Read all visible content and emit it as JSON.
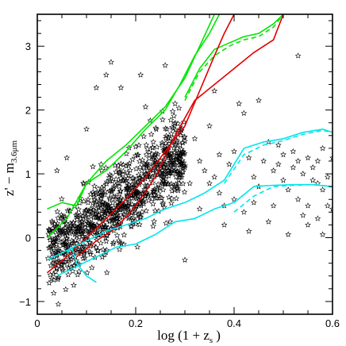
{
  "chart_data": {
    "type": "scatter",
    "title": "",
    "xlabel": {
      "main": "log (1 + z",
      "sub": "s",
      "close": ")"
    },
    "ylabel": {
      "main": "z' − m",
      "sub": "3.6μm"
    },
    "xlim": [
      0,
      0.6
    ],
    "ylim": [
      -1.2,
      3.5
    ],
    "x_ticks": [
      {
        "value": 0,
        "label": "0"
      },
      {
        "value": 0.2,
        "label": "0.2"
      },
      {
        "value": 0.4,
        "label": "0.4"
      },
      {
        "value": 0.6,
        "label": "0.6"
      }
    ],
    "y_ticks": [
      {
        "value": -1,
        "label": "−1"
      },
      {
        "value": 0,
        "label": "0"
      },
      {
        "value": 1,
        "label": "1"
      },
      {
        "value": 2,
        "label": "2"
      },
      {
        "value": 3,
        "label": "3"
      }
    ],
    "grid": false,
    "legend": "none",
    "colors": {
      "stars": "#000000",
      "green": "#00e600",
      "red": "#e00000",
      "cyan": "#00e5ee"
    },
    "scatter_summary": {
      "marker": "star",
      "seed": 7,
      "dense_points": 900,
      "dense_x_range": [
        0.02,
        0.3
      ],
      "dense_relation": {
        "intercept": -0.45,
        "slope": 6.0,
        "scatter": 0.4
      },
      "sparse_points": [
        [
          0.04,
          1.05
        ],
        [
          0.06,
          1.25
        ],
        [
          0.1,
          1.7
        ],
        [
          0.12,
          2.35
        ],
        [
          0.14,
          2.55
        ],
        [
          0.15,
          2.75
        ],
        [
          0.17,
          2.35
        ],
        [
          0.21,
          2.55
        ],
        [
          0.22,
          2.05
        ],
        [
          0.24,
          1.2
        ],
        [
          0.26,
          1.0
        ],
        [
          0.26,
          2.7
        ],
        [
          0.28,
          2.1
        ],
        [
          0.3,
          -0.35
        ],
        [
          0.32,
          1.55
        ],
        [
          0.33,
          1.2
        ],
        [
          0.34,
          1.05
        ],
        [
          0.35,
          0.85
        ],
        [
          0.36,
          0.95
        ],
        [
          0.37,
          0.7
        ],
        [
          0.37,
          1.3
        ],
        [
          0.38,
          0.2
        ],
        [
          0.38,
          0.5
        ],
        [
          0.39,
          1.15
        ],
        [
          0.4,
          1.35
        ],
        [
          0.41,
          2.1
        ],
        [
          0.42,
          0.4
        ],
        [
          0.42,
          1.95
        ],
        [
          0.43,
          1.25
        ],
        [
          0.44,
          0.95
        ],
        [
          0.45,
          0.8
        ],
        [
          0.46,
          1.2
        ],
        [
          0.47,
          1.5
        ],
        [
          0.47,
          0.25
        ],
        [
          0.48,
          1.05
        ],
        [
          0.49,
          1.15
        ],
        [
          0.5,
          0.9
        ],
        [
          0.5,
          1.3
        ],
        [
          0.51,
          0.05
        ],
        [
          0.52,
          1.1
        ],
        [
          0.52,
          1.35
        ],
        [
          0.53,
          0.6
        ],
        [
          0.53,
          1.2
        ],
        [
          0.54,
          1.0
        ],
        [
          0.54,
          0.35
        ],
        [
          0.55,
          1.25
        ],
        [
          0.55,
          0.5
        ],
        [
          0.56,
          0.9
        ],
        [
          0.56,
          1.1
        ],
        [
          0.57,
          0.3
        ],
        [
          0.57,
          1.2
        ],
        [
          0.58,
          0.75
        ],
        [
          0.58,
          0.05
        ],
        [
          0.59,
          0.5
        ],
        [
          0.59,
          0.95
        ],
        [
          0.6,
          0.45
        ],
        [
          0.6,
          1.25
        ],
        [
          0.53,
          2.85
        ],
        [
          0.55,
          0.2
        ],
        [
          0.44,
          0.55
        ],
        [
          0.31,
          0.85
        ],
        [
          0.27,
          0.25
        ],
        [
          0.29,
          1.45
        ],
        [
          0.33,
          0.45
        ],
        [
          0.36,
          2.3
        ],
        [
          0.45,
          2.15
        ],
        [
          0.49,
          1.45
        ],
        [
          0.51,
          0.75
        ],
        [
          0.57,
          0.85
        ],
        [
          0.58,
          1.4
        ],
        [
          0.4,
          0.6
        ],
        [
          0.43,
          0.1
        ],
        [
          0.35,
          1.75
        ],
        [
          0.3,
          1.1
        ],
        [
          0.48,
          0.5
        ]
      ]
    },
    "series": [
      {
        "color": "green",
        "dash": false,
        "x": [
          0.02,
          0.06,
          0.1,
          0.14,
          0.18,
          0.22,
          0.26,
          0.3,
          0.33,
          0.36
        ],
        "y": [
          0.0,
          0.3,
          0.85,
          1.2,
          1.45,
          1.75,
          2.05,
          2.5,
          3.0,
          3.5
        ]
      },
      {
        "color": "green",
        "dash": false,
        "x": [
          0.02,
          0.05,
          0.08,
          0.1,
          0.14,
          0.18,
          0.22,
          0.26,
          0.29,
          0.32,
          0.35,
          0.37
        ],
        "y": [
          0.45,
          0.55,
          0.5,
          0.85,
          1.05,
          1.35,
          1.7,
          2.0,
          2.4,
          2.85,
          3.2,
          3.5
        ]
      },
      {
        "color": "green",
        "dash": false,
        "x": [
          0.3,
          0.33,
          0.36,
          0.39,
          0.42,
          0.45,
          0.48,
          0.5
        ],
        "y": [
          2.2,
          2.65,
          2.95,
          3.05,
          3.15,
          3.2,
          3.35,
          3.5
        ]
      },
      {
        "color": "green",
        "dash": true,
        "x": [
          0.3,
          0.33,
          0.36,
          0.39,
          0.42,
          0.45,
          0.48,
          0.5
        ],
        "y": [
          2.15,
          2.6,
          2.85,
          3.0,
          3.1,
          3.15,
          3.3,
          3.5
        ]
      },
      {
        "color": "red",
        "dash": false,
        "x": [
          0.02,
          0.06,
          0.1,
          0.14,
          0.18,
          0.22,
          0.26,
          0.3,
          0.33,
          0.36,
          0.38,
          0.4
        ],
        "y": [
          -0.55,
          -0.3,
          0.0,
          0.3,
          0.6,
          0.95,
          1.35,
          1.75,
          2.3,
          2.85,
          3.2,
          3.5
        ]
      },
      {
        "color": "red",
        "dash": false,
        "x": [
          0.08,
          0.12,
          0.16,
          0.2,
          0.24,
          0.28,
          0.32,
          0.36,
          0.4,
          0.44,
          0.48,
          0.5
        ],
        "y": [
          -0.3,
          -0.05,
          0.15,
          0.5,
          0.95,
          1.6,
          2.15,
          2.4,
          2.65,
          2.9,
          3.1,
          3.5
        ]
      },
      {
        "color": "cyan",
        "dash": false,
        "x": [
          0.02,
          0.06,
          0.1,
          0.14,
          0.18,
          0.22,
          0.26,
          0.3,
          0.34,
          0.38,
          0.42,
          0.46,
          0.5,
          0.54,
          0.58,
          0.6
        ],
        "y": [
          -0.35,
          -0.2,
          -0.05,
          0.1,
          0.2,
          0.3,
          0.45,
          0.55,
          0.7,
          0.9,
          1.4,
          1.5,
          1.55,
          1.65,
          1.7,
          1.65
        ]
      },
      {
        "color": "cyan",
        "dash": true,
        "x": [
          0.38,
          0.42,
          0.46,
          0.5,
          0.54,
          0.58,
          0.6
        ],
        "y": [
          0.85,
          1.3,
          1.45,
          1.52,
          1.62,
          1.68,
          1.65
        ]
      },
      {
        "color": "cyan",
        "dash": false,
        "x": [
          0.04,
          0.08,
          0.12,
          0.16,
          0.2,
          0.24,
          0.28,
          0.32,
          0.36,
          0.4,
          0.44,
          0.48,
          0.52,
          0.56,
          0.6
        ],
        "y": [
          -0.6,
          -0.45,
          -0.3,
          -0.15,
          -0.1,
          0.05,
          0.25,
          0.3,
          0.45,
          0.55,
          0.8,
          0.82,
          0.83,
          0.83,
          0.8
        ]
      },
      {
        "color": "cyan",
        "dash": true,
        "x": [
          0.4,
          0.44,
          0.48,
          0.52,
          0.56,
          0.6
        ],
        "y": [
          0.4,
          0.65,
          0.8,
          0.82,
          0.83,
          0.8
        ]
      },
      {
        "color": "cyan",
        "dash": false,
        "x": [
          0.06,
          0.07,
          0.08,
          0.1,
          0.12
        ],
        "y": [
          -0.25,
          -0.15,
          -0.4,
          -0.6,
          -0.7
        ]
      }
    ]
  }
}
